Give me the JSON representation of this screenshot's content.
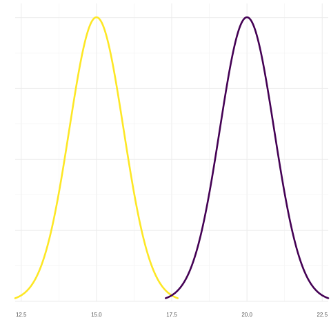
{
  "chart_data": {
    "type": "line",
    "title": "",
    "xlabel": "",
    "ylabel": "",
    "x_ticks": [
      12.5,
      15.0,
      17.5,
      20.0,
      22.5
    ],
    "x_tick_labels": [
      "12.5",
      "15.0",
      "17.5",
      "20.0",
      "22.5"
    ],
    "xlim": [
      12.3,
      22.7
    ],
    "ylim": [
      0,
      1
    ],
    "grid": true,
    "legend": "none",
    "series": [
      {
        "mean": 15.0,
        "sd": 0.9,
        "x_range": [
          12.3,
          17.7
        ],
        "color": "#FDE725"
      },
      {
        "mean": 20.0,
        "sd": 0.9,
        "x_range": [
          17.3,
          22.7
        ],
        "color": "#440154"
      }
    ]
  }
}
